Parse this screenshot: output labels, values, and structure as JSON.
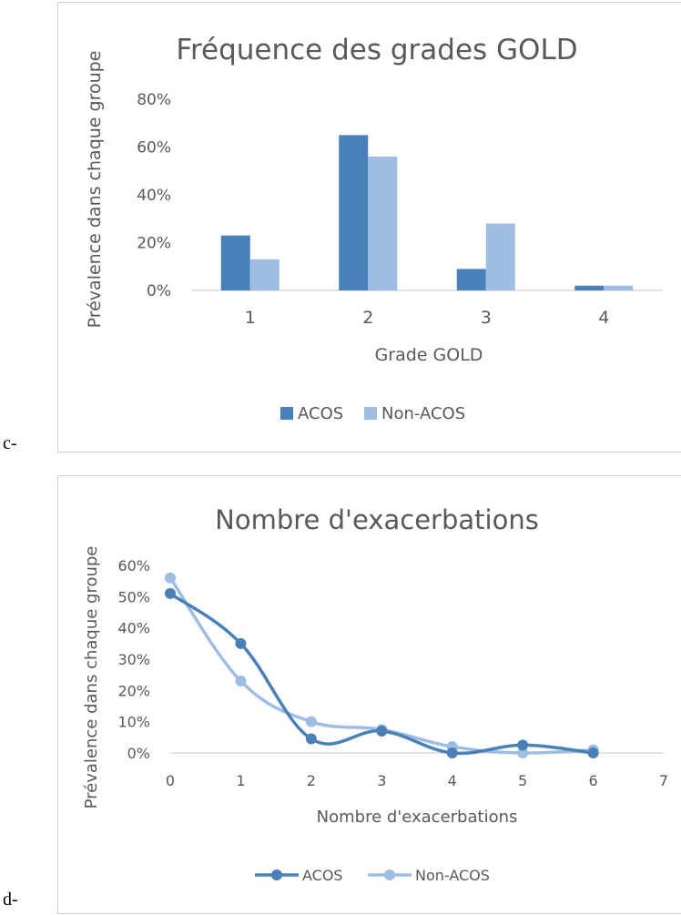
{
  "panels": [
    {
      "letter": "c-"
    },
    {
      "letter": "d-"
    }
  ],
  "colors": {
    "acos": "#4a80b8",
    "non_acos": "#9dbde2",
    "grid": "#d9d9d9",
    "text": "#595959"
  },
  "chart_data": [
    {
      "type": "bar",
      "title": "Fréquence des grades GOLD",
      "xlabel": "Grade GOLD",
      "ylabel": "Prévalence dans chaque groupe",
      "categories": [
        "1",
        "2",
        "3",
        "4"
      ],
      "yticks": [
        "0%",
        "20%",
        "40%",
        "60%",
        "80%"
      ],
      "ylim": [
        0,
        80
      ],
      "series": [
        {
          "name": "ACOS",
          "values": [
            23,
            65,
            9,
            2
          ]
        },
        {
          "name": "Non-ACOS",
          "values": [
            13,
            56,
            28,
            2
          ]
        }
      ],
      "legend": "bottom",
      "grid": false
    },
    {
      "type": "line",
      "title": "Nombre d'exacerbations",
      "xlabel": "Nombre d'exacerbations",
      "ylabel": "Prévalence dans chaque groupe",
      "xticks": [
        "0",
        "1",
        "2",
        "3",
        "4",
        "5",
        "6",
        "7"
      ],
      "xlim": [
        0,
        7
      ],
      "yticks": [
        "0%",
        "10%",
        "20%",
        "30%",
        "40%",
        "50%",
        "60%"
      ],
      "ylim": [
        0,
        60
      ],
      "x": [
        0,
        1,
        2,
        3,
        4,
        5,
        6
      ],
      "series": [
        {
          "name": "ACOS",
          "values": [
            51,
            35,
            4.5,
            7,
            0,
            2.5,
            0
          ]
        },
        {
          "name": "Non-ACOS",
          "values": [
            56,
            23,
            10,
            7.5,
            2,
            0,
            1
          ]
        }
      ],
      "legend": "bottom",
      "grid": false
    }
  ]
}
